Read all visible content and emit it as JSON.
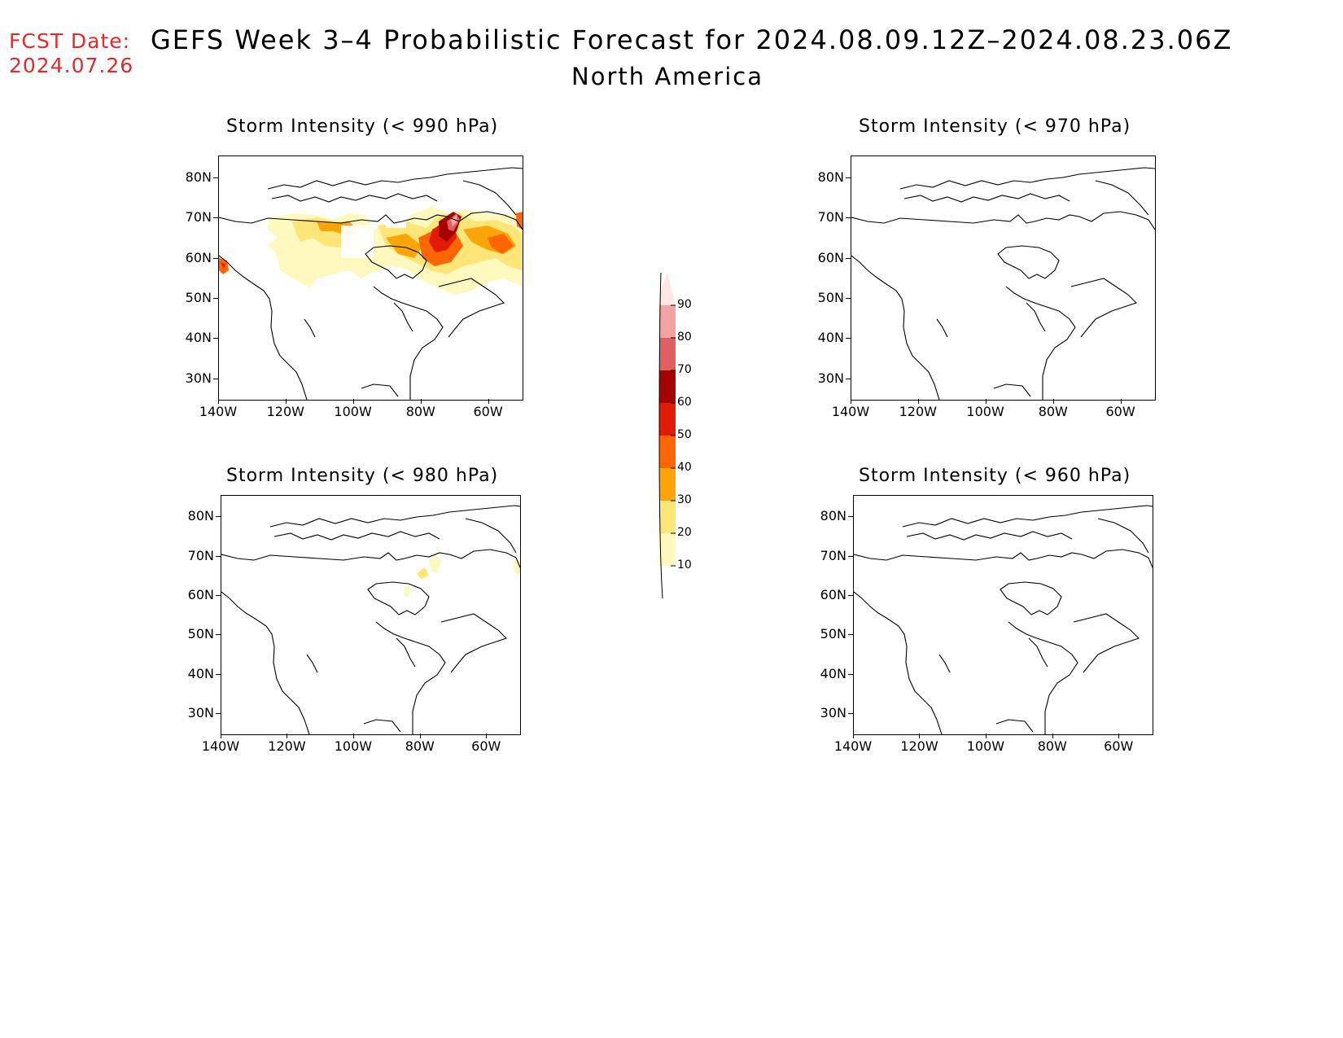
{
  "header": {
    "fcst_label": "FCST Date:",
    "fcst_date": "2024.07.26",
    "title": "GEFS Week 3–4 Probabilistic Forecast for 2024.08.09.12Z–2024.08.23.06Z",
    "region": "North America"
  },
  "colors": {
    "fcst_text": "#e8282b",
    "levels": [
      "#fff9c0",
      "#fde577",
      "#fca509",
      "#fd6602",
      "#e11b04",
      "#a40300",
      "#e06060",
      "#f4a3a3",
      "#fde6e6"
    ]
  },
  "lat_labels": [
    "80N",
    "70N",
    "60N",
    "50N",
    "40N",
    "30N"
  ],
  "lon_labels": [
    "140W",
    "120W",
    "100W",
    "80W",
    "60W"
  ],
  "colorbar": {
    "labels": [
      "90",
      "80",
      "70",
      "60",
      "50",
      "40",
      "30",
      "20",
      "10"
    ]
  },
  "panels": [
    {
      "id": "p990",
      "title": "Storm Intensity (< 990 hPa)"
    },
    {
      "id": "p970",
      "title": "Storm Intensity (< 970 hPa)"
    },
    {
      "id": "p980",
      "title": "Storm Intensity (< 980 hPa)"
    },
    {
      "id": "p960",
      "title": "Storm Intensity (< 960 hPa)"
    }
  ]
}
